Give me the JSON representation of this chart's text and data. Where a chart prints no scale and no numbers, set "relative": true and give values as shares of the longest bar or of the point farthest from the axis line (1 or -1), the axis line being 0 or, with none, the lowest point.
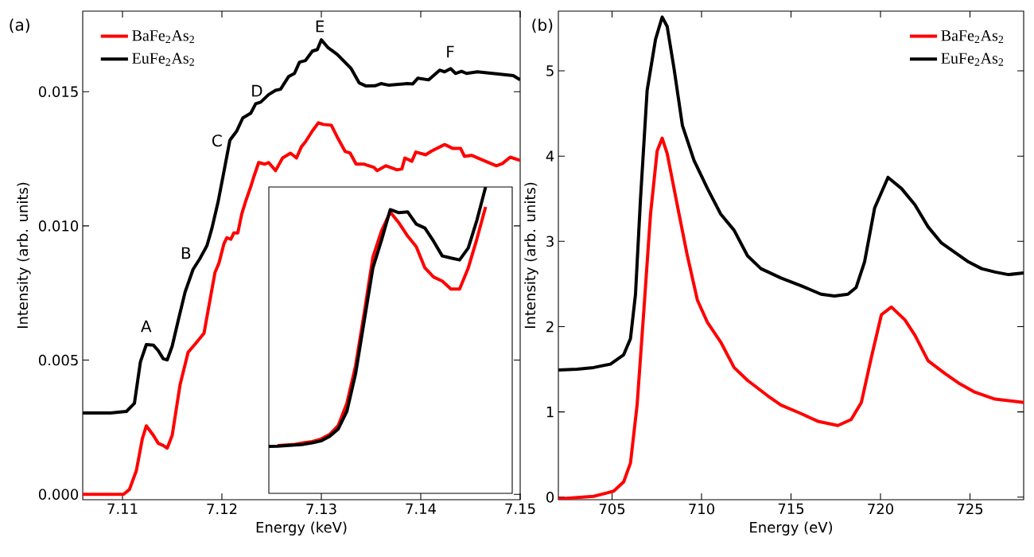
{
  "chart_data": [
    {
      "type": "line",
      "xlabel": "Energy (keV)",
      "ylabel": "Intensity (arb. units)",
      "xlim": [
        7.106,
        7.15
      ],
      "ylim": [
        -0.0002,
        0.018
      ],
      "xticks": [
        7.11,
        7.12,
        7.13,
        7.14,
        7.15
      ],
      "yticks": [
        {
          "value": 0,
          "label": "0.000"
        },
        {
          "value": 0.005,
          "label": "0.005"
        },
        {
          "value": 0.01,
          "label": "0.010"
        },
        {
          "value": 0.015,
          "label": "0.015"
        }
      ],
      "legend": "top left",
      "annotations": [
        "(a)",
        "A",
        "B",
        "C",
        "D",
        "E",
        "F"
      ],
      "series": [
        {
          "name": "BaFe$_{2}$As$_{2}$",
          "color": "#ff0000",
          "x": [
            7.106,
            7.1088,
            7.1101,
            7.1107,
            7.1114,
            7.112,
            7.1124,
            7.1131,
            7.1136,
            7.1141,
            7.1145,
            7.115,
            7.1158,
            7.1166,
            7.1174,
            7.1182,
            7.1186,
            7.1193,
            7.1197,
            7.1202,
            7.1205,
            7.1209,
            7.1212,
            7.1216,
            7.122,
            7.1224,
            7.1229,
            7.1232,
            7.1237,
            7.1243,
            7.1247,
            7.1254,
            7.1261,
            7.1269,
            7.1275,
            7.128,
            7.1284,
            7.1291,
            7.1297,
            7.1302,
            7.131,
            7.1316,
            7.1324,
            7.1329,
            7.1335,
            7.1343,
            7.1353,
            7.1356,
            7.1365,
            7.1376,
            7.1381,
            7.1384,
            7.1391,
            7.1395,
            7.1405,
            7.1411,
            7.1424,
            7.1432,
            7.144,
            7.1444,
            7.1451,
            7.1465,
            7.1476,
            7.1482,
            7.149,
            7.15
          ],
          "values": [
            0,
            0,
            0,
            0.00018,
            0.00089,
            0.00208,
            0.00255,
            0.0022,
            0.0019,
            0.00182,
            0.00172,
            0.0022,
            0.0041,
            0.00529,
            0.00564,
            0.006,
            0.00683,
            0.00826,
            0.00861,
            0.00933,
            0.00956,
            0.0095,
            0.00974,
            0.00974,
            0.01045,
            0.01093,
            0.01146,
            0.01182,
            0.01236,
            0.0123,
            0.01236,
            0.01206,
            0.01253,
            0.01271,
            0.01253,
            0.01295,
            0.01313,
            0.01354,
            0.01384,
            0.01378,
            0.01375,
            0.01331,
            0.01277,
            0.01271,
            0.0123,
            0.0123,
            0.01218,
            0.01206,
            0.01224,
            0.01209,
            0.01212,
            0.01253,
            0.01241,
            0.01275,
            0.01265,
            0.01279,
            0.01303,
            0.01289,
            0.01289,
            0.01259,
            0.01263,
            0.01241,
            0.01224,
            0.01232,
            0.01256,
            0.01244
          ]
        },
        {
          "name": "EuFe$_{2}$As$_{2}$",
          "color": "#000000",
          "x": [
            7.106,
            7.1088,
            7.1104,
            7.1112,
            7.1118,
            7.1124,
            7.1131,
            7.1136,
            7.1141,
            7.1145,
            7.115,
            7.1156,
            7.1163,
            7.1171,
            7.1178,
            7.1185,
            7.119,
            7.1196,
            7.1201,
            7.1204,
            7.1208,
            7.1215,
            7.1221,
            7.1229,
            7.1234,
            7.1239,
            7.1247,
            7.1254,
            7.1259,
            7.1267,
            7.1273,
            7.1278,
            7.1284,
            7.1291,
            7.1296,
            7.13,
            7.1307,
            7.1316,
            7.133,
            7.1338,
            7.1345,
            7.1354,
            7.136,
            7.1368,
            7.1386,
            7.1392,
            7.1397,
            7.1408,
            7.1419,
            7.1424,
            7.143,
            7.1435,
            7.1441,
            7.1446,
            7.1457,
            7.1478,
            7.1493,
            7.15
          ],
          "values": [
            0.00303,
            0.00303,
            0.00309,
            0.00339,
            0.00493,
            0.00558,
            0.00556,
            0.00535,
            0.00505,
            0.00501,
            0.00552,
            0.00647,
            0.00754,
            0.00838,
            0.00879,
            0.00927,
            0.00992,
            0.01087,
            0.01182,
            0.01241,
            0.01319,
            0.01354,
            0.01402,
            0.0142,
            0.01455,
            0.01461,
            0.01489,
            0.01505,
            0.01509,
            0.01556,
            0.01568,
            0.0161,
            0.01616,
            0.01651,
            0.01657,
            0.01693,
            0.01663,
            0.01639,
            0.01586,
            0.01533,
            0.01521,
            0.01522,
            0.0153,
            0.01524,
            0.0153,
            0.01529,
            0.0155,
            0.01544,
            0.0158,
            0.01574,
            0.01586,
            0.01568,
            0.01576,
            0.01568,
            0.01574,
            0.01566,
            0.0156,
            0.01544
          ]
        }
      ]
    },
    {
      "type": "line",
      "relative": true,
      "tick_labels": false,
      "categories": [
        null,
        null,
        null,
        null,
        null,
        null,
        null,
        null,
        null,
        null,
        null,
        null,
        null,
        null,
        null,
        null,
        null,
        null,
        null,
        null,
        null,
        null,
        null,
        null,
        null,
        null
      ],
      "series": [
        {
          "color": "#ff0000",
          "values": [
            null,
            0.156,
            0.158,
            0.16,
            0.165,
            0.169,
            0.177,
            0.192,
            0.221,
            0.294,
            0.416,
            0.589,
            0.771,
            0.857,
            0.918,
            0.883,
            0.84,
            0.805,
            0.736,
            0.706,
            0.693,
            0.667,
            0.667,
            0.736,
            0.831,
            0.935
          ]
        },
        {
          "color": "#000000",
          "values": [
            0.153,
            0.154,
            0.156,
            0.158,
            0.16,
            0.165,
            0.171,
            0.186,
            0.21,
            0.268,
            0.39,
            0.563,
            0.736,
            0.827,
            0.926,
            0.916,
            0.919,
            0.879,
            0.866,
            0.823,
            0.775,
            0.768,
            0.762,
            0.801,
            0.892,
            1
          ]
        }
      ]
    },
    {
      "type": "line",
      "xlabel": "Energy (eV)",
      "ylabel": "Intensity (arb. units)",
      "xlim": [
        702,
        728
      ],
      "ylim": [
        -0.03,
        5.7
      ],
      "xticks": [
        705,
        710,
        715,
        720,
        725
      ],
      "yticks": [
        0,
        1,
        2,
        3,
        4,
        5
      ],
      "legend": "top right",
      "annotations": [
        "(b)"
      ],
      "series": [
        {
          "name": "BaFe$_{2}$As$_{2}$",
          "color": "#ff0000",
          "x": [
            702.0,
            703.97,
            705.09,
            705.65,
            706.03,
            706.4,
            706.78,
            707.15,
            707.52,
            707.8,
            708.08,
            708.64,
            709.21,
            709.77,
            710.33,
            711.07,
            711.82,
            712.57,
            713.69,
            714.44,
            715.56,
            716.5,
            717.62,
            718.36,
            718.93,
            719.49,
            720.05,
            720.61,
            721.36,
            721.92,
            722.66,
            723.6,
            724.35,
            725.28,
            726.4,
            728.0
          ],
          "values": [
            -0.02,
            0.01,
            0.07,
            0.18,
            0.4,
            1.08,
            2.2,
            3.32,
            4.06,
            4.21,
            4.03,
            3.43,
            2.83,
            2.31,
            2.05,
            1.82,
            1.52,
            1.37,
            1.19,
            1.08,
            0.98,
            0.89,
            0.84,
            0.91,
            1.11,
            1.64,
            2.14,
            2.23,
            2.08,
            1.9,
            1.6,
            1.45,
            1.34,
            1.23,
            1.15,
            1.11
          ]
        },
        {
          "name": "EuFe$_{2}$As$_{2}$",
          "color": "#000000",
          "x": [
            702.0,
            703.04,
            703.97,
            704.91,
            705.65,
            706.03,
            706.31,
            706.59,
            706.96,
            707.43,
            707.8,
            708.08,
            708.46,
            708.93,
            709.58,
            710.33,
            711.07,
            711.82,
            712.57,
            713.32,
            714.44,
            715.56,
            716.68,
            717.43,
            718.18,
            718.64,
            719.11,
            719.67,
            720.42,
            721.17,
            721.92,
            722.66,
            723.41,
            724.16,
            724.91,
            725.65,
            726.4,
            727.15,
            728.0
          ],
          "values": [
            1.49,
            1.5,
            1.52,
            1.56,
            1.67,
            1.86,
            2.38,
            3.5,
            4.77,
            5.37,
            5.63,
            5.52,
            5.03,
            4.36,
            3.95,
            3.62,
            3.32,
            3.13,
            2.83,
            2.68,
            2.57,
            2.48,
            2.38,
            2.36,
            2.38,
            2.46,
            2.76,
            3.39,
            3.75,
            3.62,
            3.43,
            3.17,
            2.98,
            2.87,
            2.76,
            2.68,
            2.64,
            2.61,
            2.63
          ]
        }
      ]
    }
  ]
}
